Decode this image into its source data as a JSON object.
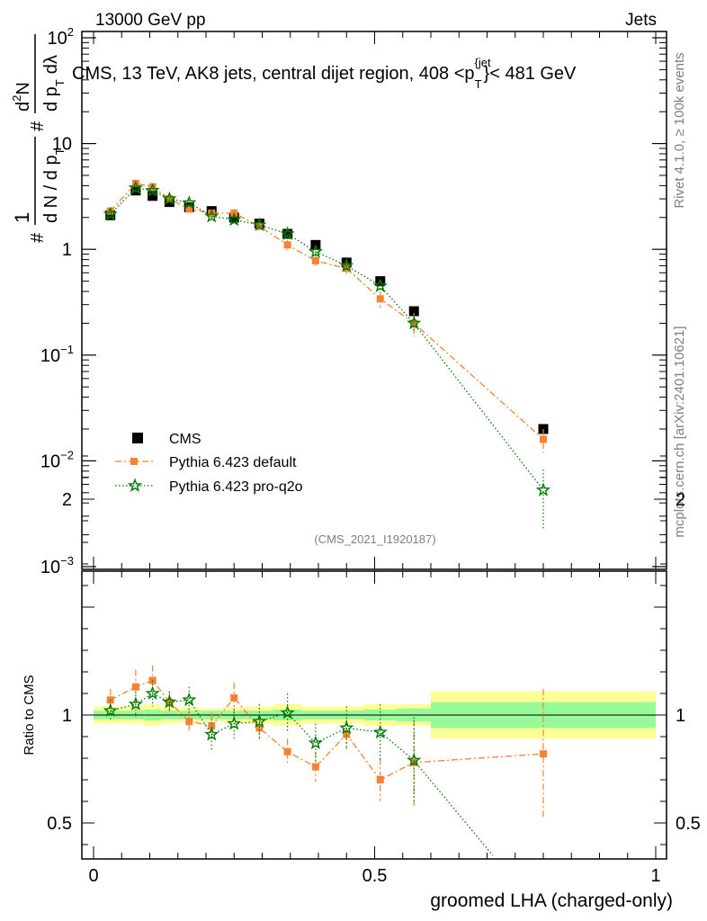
{
  "header": {
    "left": "13000 GeV pp",
    "right": "Jets"
  },
  "side_labels": {
    "rivet": "Rivet 4.1.0, ≥ 100k events",
    "site": "mcplots.cern.ch [arXiv:2401.10621]"
  },
  "chart_data": [
    {
      "type": "scatter",
      "panel": "main",
      "title": "CMS, 13 TeV, AK8 jets, central dijet region, 408 <p_T^{jet}< 481 GeV",
      "title_main": "CMS, 13 TeV, AK8 jets, central dijet region, 408 <p",
      "title_sub": "T",
      "title_sup": "{jet",
      "title_end": "}< 481 GeV",
      "ylabel": "1/(dN/dp_T) d²N/(dp_T dλ)",
      "ylabel_parts": {
        "hash": "#",
        "one": "1",
        "dn": "d N / d p",
        "t": "T",
        "d2n": "d",
        "two": "2",
        "n": "N",
        "dp": "d p",
        "dl": "dλ"
      },
      "yscale": "log",
      "ylim": [
        0.001,
        100
      ],
      "xlim": [
        0,
        1
      ],
      "yticks": [
        {
          "v": 100,
          "b": "10",
          "e": "2"
        },
        {
          "v": 10,
          "b": "10",
          "e": ""
        },
        {
          "v": 1,
          "b": "1",
          "e": ""
        },
        {
          "v": 0.1,
          "b": "10",
          "e": "−1"
        },
        {
          "v": 0.01,
          "b": "10",
          "e": "−2"
        },
        {
          "v": 0.001,
          "b": "10",
          "e": "−3"
        }
      ],
      "analysis_label": "(CMS_2021_I1920187)",
      "legend": {
        "position": "bottom-left",
        "entries": [
          "CMS",
          "Pythia 6.423 default",
          "Pythia 6.423 pro-q2o"
        ]
      },
      "series": [
        {
          "name": "CMS",
          "color": "#000000",
          "marker": "square",
          "x": [
            0.03,
            0.075,
            0.105,
            0.135,
            0.17,
            0.21,
            0.25,
            0.295,
            0.345,
            0.395,
            0.45,
            0.51,
            0.57,
            0.8
          ],
          "y": [
            2.1,
            3.6,
            3.2,
            2.8,
            2.5,
            2.3,
            2.0,
            1.75,
            1.4,
            1.1,
            0.75,
            0.5,
            0.26,
            0.02
          ]
        },
        {
          "name": "Pythia 6.423 default",
          "color": "#f58232",
          "marker": "square",
          "line": "dashdot",
          "x": [
            0.03,
            0.075,
            0.105,
            0.135,
            0.17,
            0.21,
            0.25,
            0.295,
            0.345,
            0.395,
            0.45,
            0.51,
            0.57,
            0.8
          ],
          "y": [
            2.3,
            4.2,
            3.9,
            3.0,
            2.4,
            2.2,
            2.2,
            1.65,
            1.1,
            0.78,
            0.66,
            0.34,
            0.2,
            0.016
          ],
          "err": [
            0.15,
            0.25,
            0.25,
            0.2,
            0.18,
            0.18,
            0.2,
            0.15,
            0.12,
            0.1,
            0.08,
            0.06,
            0.05,
            0.004
          ]
        },
        {
          "name": "Pythia 6.423 pro-q2o",
          "color": "#007a00",
          "marker": "star",
          "line": "dotted",
          "x": [
            0.03,
            0.075,
            0.105,
            0.135,
            0.17,
            0.21,
            0.25,
            0.295,
            0.345,
            0.395,
            0.45,
            0.51,
            0.57,
            0.8
          ],
          "y": [
            2.15,
            3.8,
            3.6,
            3.0,
            2.75,
            2.05,
            1.9,
            1.7,
            1.4,
            0.95,
            0.7,
            0.45,
            0.2,
            0.0053
          ],
          "err": [
            0.12,
            0.2,
            0.2,
            0.18,
            0.17,
            0.14,
            0.13,
            0.12,
            0.1,
            0.08,
            0.06,
            0.05,
            0.04,
            0.003
          ]
        }
      ]
    },
    {
      "type": "scatter",
      "panel": "ratio",
      "ylabel": "Ratio to CMS",
      "xlabel": "groomed LHA (charged-only)",
      "xlim": [
        0,
        1
      ],
      "ylim": [
        0.35,
        2.35
      ],
      "xticks": [
        {
          "v": 0,
          "label": "0"
        },
        {
          "v": 0.5,
          "label": "0.5"
        },
        {
          "v": 1,
          "label": "1"
        }
      ],
      "yticks": [
        {
          "v": 0.5,
          "label": "0.5"
        },
        {
          "v": 1,
          "label": "1"
        },
        {
          "v": 2,
          "label": "2"
        }
      ],
      "bands": {
        "edges": [
          0,
          0.05,
          0.09,
          0.12,
          0.15,
          0.19,
          0.23,
          0.27,
          0.32,
          0.37,
          0.42,
          0.48,
          0.54,
          0.6,
          1.0
        ],
        "stat": [
          0.02,
          0.02,
          0.025,
          0.02,
          0.02,
          0.02,
          0.02,
          0.02,
          0.025,
          0.02,
          0.02,
          0.025,
          0.03,
          0.06
        ],
        "total": [
          0.04,
          0.04,
          0.05,
          0.04,
          0.035,
          0.03,
          0.035,
          0.04,
          0.05,
          0.04,
          0.04,
          0.05,
          0.05,
          0.11
        ],
        "stat_color": "#98f998",
        "total_color": "#ffff98"
      },
      "series": [
        {
          "name": "Pythia 6.423 default",
          "color": "#f58232",
          "x": [
            0.03,
            0.075,
            0.105,
            0.135,
            0.17,
            0.21,
            0.25,
            0.295,
            0.345,
            0.395,
            0.45,
            0.51,
            0.57,
            0.8
          ],
          "y": [
            1.07,
            1.13,
            1.16,
            1.06,
            0.97,
            0.95,
            1.08,
            0.94,
            0.83,
            0.76,
            0.91,
            0.7,
            0.78,
            0.82
          ],
          "err": [
            0.05,
            0.08,
            0.07,
            0.05,
            0.05,
            0.06,
            0.07,
            0.06,
            0.06,
            0.07,
            0.07,
            0.1,
            0.2,
            0.3
          ]
        },
        {
          "name": "Pythia 6.423 pro-q2o",
          "color": "#007a00",
          "x": [
            0.03,
            0.075,
            0.105,
            0.135,
            0.17,
            0.21,
            0.25,
            0.295,
            0.345,
            0.395,
            0.45,
            0.51,
            0.57,
            0.71
          ],
          "y": [
            1.02,
            1.05,
            1.1,
            1.06,
            1.07,
            0.91,
            0.96,
            0.97,
            1.01,
            0.87,
            0.94,
            0.92,
            0.79,
            0.35
          ],
          "err": [
            0.05,
            0.06,
            0.06,
            0.05,
            0.06,
            0.07,
            0.07,
            0.08,
            0.09,
            0.09,
            0.1,
            0.13,
            0.2,
            0
          ],
          "star_count": 13
        }
      ]
    }
  ]
}
